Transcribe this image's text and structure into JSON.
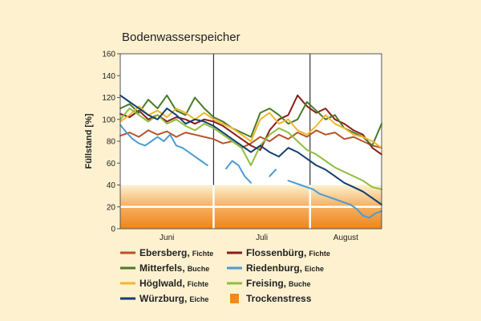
{
  "chart_data": {
    "type": "line",
    "title": "Bodenwasserspeicher",
    "ylabel": "Füllstand [%]",
    "xlabel": "",
    "ylim": [
      0,
      160
    ],
    "yticks": [
      0,
      20,
      40,
      60,
      80,
      100,
      120,
      140,
      160
    ],
    "months": [
      "Juni",
      "Juli",
      "August"
    ],
    "x_range_days": [
      0,
      84
    ],
    "month_bounds_days": [
      0,
      30,
      61,
      84
    ],
    "grid": false,
    "legend_position": "bottom",
    "stress_band": {
      "label": "Trockenstress",
      "range": [
        0,
        40
      ],
      "color": "#ef8a1c"
    },
    "series": [
      {
        "name": "Ebersberg",
        "tree": "Fichte",
        "color": "#b5542a",
        "x": [
          0,
          3,
          6,
          9,
          12,
          15,
          18,
          21,
          24,
          27,
          30,
          33,
          36,
          39,
          42,
          45,
          48,
          51,
          54,
          57,
          60,
          63,
          66,
          69,
          72,
          75,
          78,
          81,
          84
        ],
        "y": [
          85,
          88,
          84,
          90,
          86,
          89,
          84,
          88,
          86,
          84,
          82,
          78,
          80,
          74,
          78,
          84,
          80,
          86,
          82,
          88,
          84,
          90,
          86,
          88,
          82,
          84,
          80,
          76,
          74
        ]
      },
      {
        "name": "Flossenbürg",
        "tree": "Fichte",
        "color": "#8a1d1a",
        "x": [
          0,
          3,
          6,
          9,
          12,
          15,
          18,
          21,
          24,
          27,
          30,
          33,
          36,
          39,
          42,
          45,
          48,
          51,
          54,
          57,
          60,
          63,
          66,
          69,
          72,
          75,
          78,
          81,
          84
        ],
        "y": [
          105,
          102,
          108,
          100,
          104,
          98,
          102,
          100,
          96,
          100,
          98,
          94,
          88,
          82,
          76,
          72,
          90,
          100,
          104,
          122,
          112,
          106,
          110,
          100,
          96,
          90,
          86,
          74,
          68
        ]
      },
      {
        "name": "Mitterfels",
        "tree": "Buche",
        "color": "#4a7a2a",
        "x": [
          0,
          3,
          6,
          9,
          12,
          15,
          18,
          21,
          24,
          27,
          30,
          33,
          36,
          39,
          42,
          45,
          48,
          51,
          54,
          57,
          60,
          63,
          66,
          69,
          72,
          75,
          78,
          81,
          84
        ],
        "y": [
          110,
          114,
          106,
          118,
          110,
          122,
          108,
          104,
          120,
          110,
          102,
          98,
          92,
          88,
          84,
          106,
          110,
          104,
          96,
          100,
          116,
          108,
          100,
          104,
          92,
          88,
          84,
          76,
          96
        ]
      },
      {
        "name": "Riedenburg",
        "tree": "Eiche",
        "color": "#4b9cd3",
        "x": [
          0,
          2,
          4,
          6,
          8,
          10,
          12,
          14,
          16,
          18,
          20,
          22,
          24,
          26,
          28,
          30,
          32,
          34,
          36,
          38,
          40,
          42,
          44,
          46,
          48,
          50,
          52,
          54,
          56,
          58,
          60,
          62,
          64,
          66,
          68,
          70,
          72,
          74,
          76,
          78,
          80,
          82,
          84
        ],
        "y": [
          95,
          88,
          82,
          78,
          76,
          80,
          84,
          80,
          86,
          76,
          74,
          70,
          66,
          62,
          58,
          null,
          null,
          55,
          62,
          58,
          48,
          42,
          null,
          null,
          48,
          54,
          null,
          44,
          42,
          40,
          38,
          36,
          32,
          30,
          28,
          26,
          24,
          22,
          18,
          12,
          10,
          14,
          16
        ]
      },
      {
        "name": "Höglwald",
        "tree": "Fichte",
        "color": "#efb72a",
        "x": [
          0,
          3,
          6,
          9,
          12,
          15,
          18,
          21,
          24,
          27,
          30,
          33,
          36,
          39,
          42,
          45,
          48,
          51,
          54,
          57,
          60,
          63,
          66,
          69,
          72,
          75,
          78,
          81,
          84
        ],
        "y": [
          98,
          104,
          112,
          104,
          108,
          102,
          110,
          106,
          100,
          106,
          100,
          96,
          92,
          86,
          80,
          100,
          106,
          96,
          100,
          90,
          86,
          94,
          104,
          96,
          92,
          86,
          84,
          80,
          74
        ]
      },
      {
        "name": "Freising",
        "tree": "Buche",
        "color": "#8fbe3f",
        "x": [
          0,
          3,
          6,
          9,
          12,
          15,
          18,
          21,
          24,
          27,
          30,
          33,
          36,
          39,
          42,
          45,
          48,
          51,
          54,
          57,
          60,
          63,
          66,
          69,
          72,
          75,
          78,
          81,
          84
        ],
        "y": [
          100,
          110,
          104,
          98,
          104,
          96,
          100,
          94,
          90,
          96,
          92,
          86,
          80,
          74,
          58,
          76,
          86,
          92,
          88,
          80,
          72,
          68,
          62,
          56,
          52,
          48,
          44,
          38,
          36
        ]
      },
      {
        "name": "Würzburg",
        "tree": "Eiche",
        "color": "#123f6e",
        "x": [
          0,
          3,
          6,
          9,
          12,
          15,
          18,
          21,
          24,
          27,
          30,
          33,
          36,
          39,
          42,
          45,
          48,
          51,
          54,
          57,
          60,
          63,
          66,
          69,
          72,
          75,
          78,
          81,
          84
        ],
        "y": [
          122,
          116,
          110,
          104,
          100,
          110,
          104,
          96,
          100,
          98,
          94,
          88,
          82,
          76,
          70,
          76,
          70,
          66,
          74,
          70,
          64,
          58,
          54,
          48,
          42,
          38,
          34,
          28,
          22
        ]
      }
    ]
  }
}
